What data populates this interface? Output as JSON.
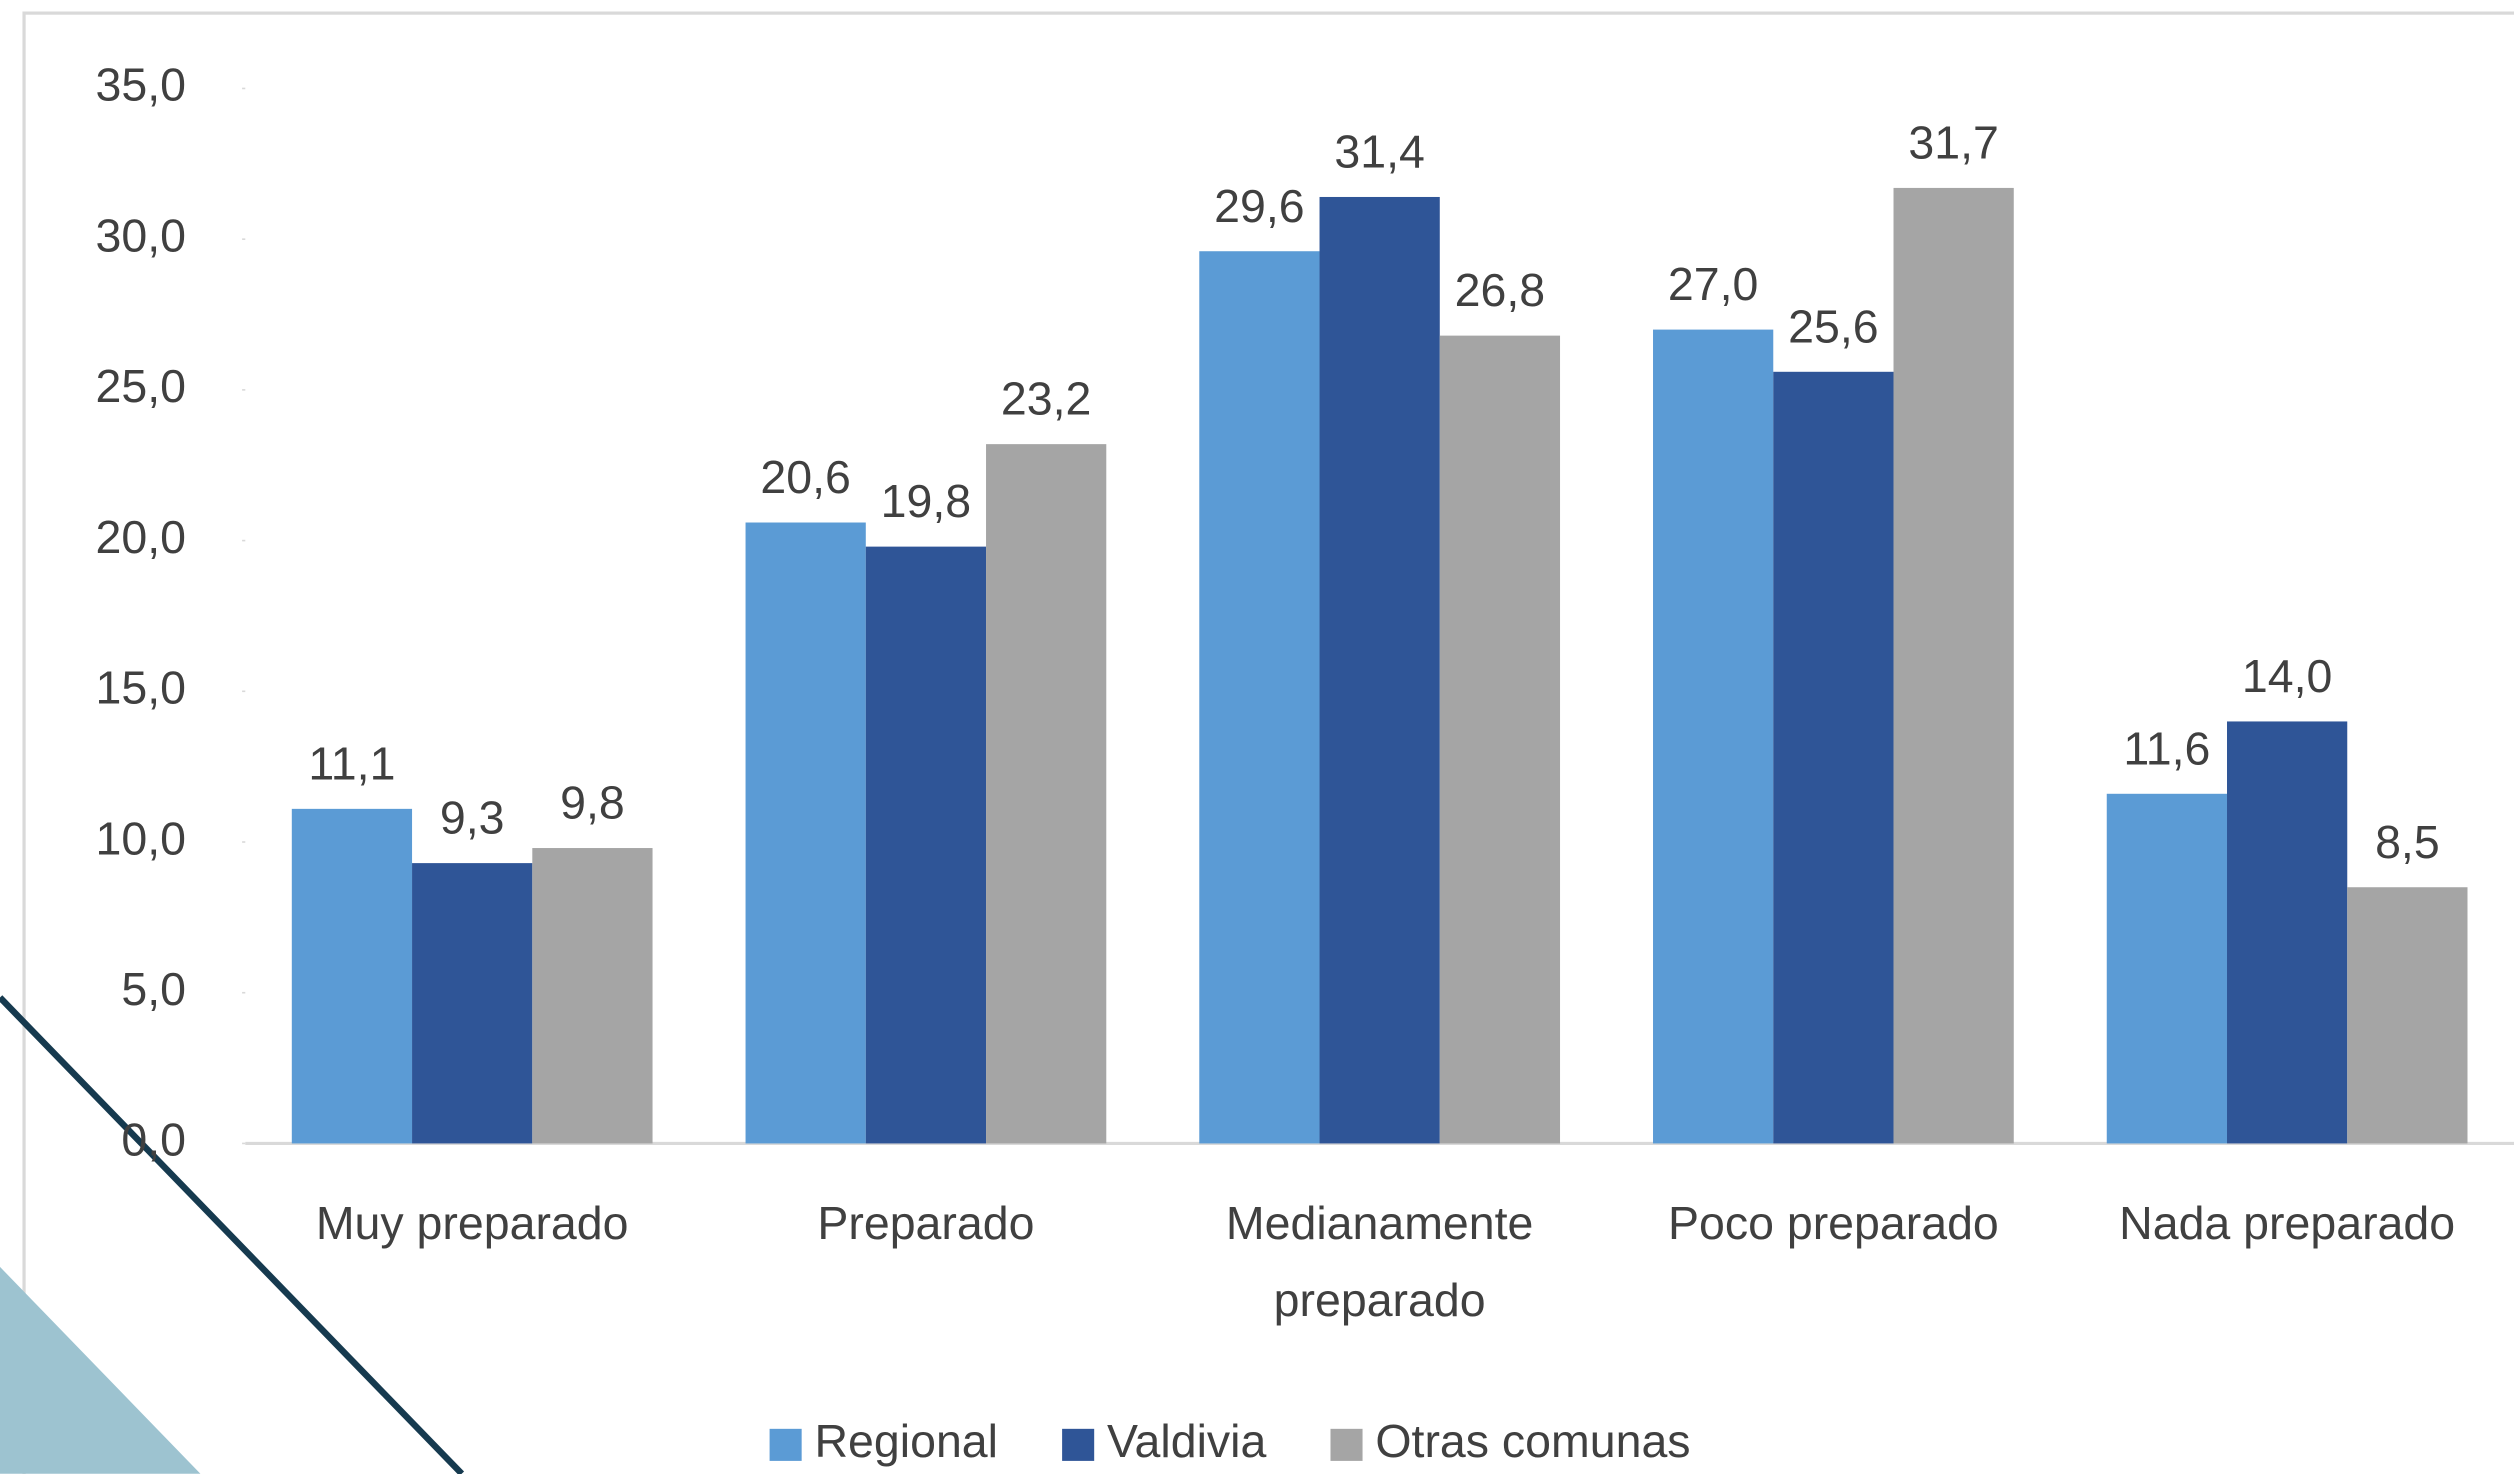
{
  "chart_data": {
    "type": "bar",
    "categories": [
      "Muy preparado",
      "Preparado",
      "Medianamente preparado",
      "Poco preparado",
      "Nada preparado"
    ],
    "series": [
      {
        "name": "Regional",
        "color": "#5b9bd5",
        "values": [
          11.1,
          20.6,
          29.6,
          27.0,
          11.6
        ],
        "value_labels": [
          "11,1",
          "20,6",
          "29,6",
          "27,0",
          "11,6"
        ]
      },
      {
        "name": "Valdivia",
        "color": "#2f5597",
        "values": [
          9.3,
          19.8,
          31.4,
          25.6,
          14.0
        ],
        "value_labels": [
          "9,3",
          "19,8",
          "31,4",
          "25,6",
          "14,0"
        ]
      },
      {
        "name": "Otras comunas",
        "color": "#a5a5a5",
        "values": [
          9.8,
          23.2,
          26.8,
          31.7,
          8.5
        ],
        "value_labels": [
          "9,8",
          "23,2",
          "26,8",
          "31,7",
          "8,5"
        ]
      }
    ],
    "ylim": [
      0,
      35
    ],
    "yticks": [
      {
        "value": 0,
        "label": "0,0"
      },
      {
        "value": 5,
        "label": "5,0"
      },
      {
        "value": 10,
        "label": "10,0"
      },
      {
        "value": 15,
        "label": "15,0"
      },
      {
        "value": 20,
        "label": "20,0"
      },
      {
        "value": 25,
        "label": "25,0"
      },
      {
        "value": 30,
        "label": "30,0"
      },
      {
        "value": 35,
        "label": "35,0"
      }
    ],
    "legend": "bottom"
  }
}
